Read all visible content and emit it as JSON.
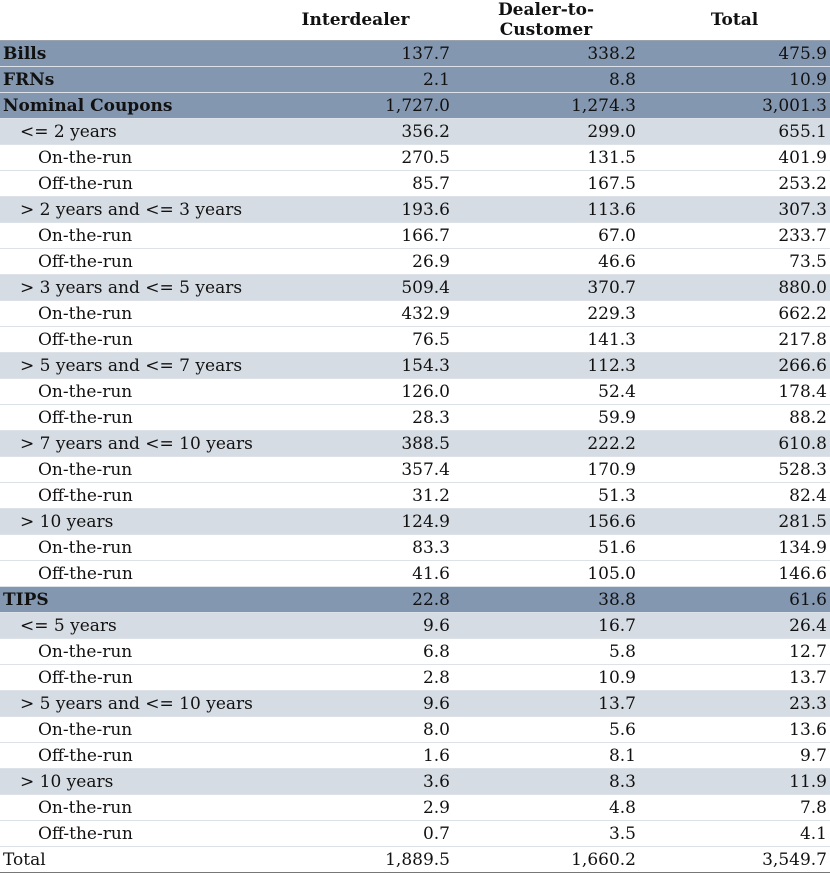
{
  "columns": [
    "",
    "Interdealer",
    "Dealer-to-Customer",
    "Total"
  ],
  "rows": [
    {
      "label": "Bills",
      "level": 0,
      "values": [
        "137.7",
        "338.2",
        "475.9"
      ]
    },
    {
      "label": "FRNs",
      "level": 0,
      "values": [
        "2.1",
        "8.8",
        "10.9"
      ]
    },
    {
      "label": "Nominal Coupons",
      "level": 0,
      "values": [
        "1,727.0",
        "1,274.3",
        "3,001.3"
      ]
    },
    {
      "label": "<= 2 years",
      "level": 1,
      "values": [
        "356.2",
        "299.0",
        "655.1"
      ]
    },
    {
      "label": "On-the-run",
      "level": 2,
      "values": [
        "270.5",
        "131.5",
        "401.9"
      ]
    },
    {
      "label": "Off-the-run",
      "level": 2,
      "values": [
        "85.7",
        "167.5",
        "253.2"
      ]
    },
    {
      "label": "> 2 years and <= 3 years",
      "level": 1,
      "values": [
        "193.6",
        "113.6",
        "307.3"
      ]
    },
    {
      "label": "On-the-run",
      "level": 2,
      "values": [
        "166.7",
        "67.0",
        "233.7"
      ]
    },
    {
      "label": "Off-the-run",
      "level": 2,
      "values": [
        "26.9",
        "46.6",
        "73.5"
      ]
    },
    {
      "label": "> 3 years and <= 5 years",
      "level": 1,
      "values": [
        "509.4",
        "370.7",
        "880.0"
      ]
    },
    {
      "label": "On-the-run",
      "level": 2,
      "values": [
        "432.9",
        "229.3",
        "662.2"
      ]
    },
    {
      "label": "Off-the-run",
      "level": 2,
      "values": [
        "76.5",
        "141.3",
        "217.8"
      ]
    },
    {
      "label": "> 5 years and <= 7 years",
      "level": 1,
      "values": [
        "154.3",
        "112.3",
        "266.6"
      ]
    },
    {
      "label": "On-the-run",
      "level": 2,
      "values": [
        "126.0",
        "52.4",
        "178.4"
      ]
    },
    {
      "label": "Off-the-run",
      "level": 2,
      "values": [
        "28.3",
        "59.9",
        "88.2"
      ]
    },
    {
      "label": "> 7 years and <= 10 years",
      "level": 1,
      "values": [
        "388.5",
        "222.2",
        "610.8"
      ]
    },
    {
      "label": "On-the-run",
      "level": 2,
      "values": [
        "357.4",
        "170.9",
        "528.3"
      ]
    },
    {
      "label": "Off-the-run",
      "level": 2,
      "values": [
        "31.2",
        "51.3",
        "82.4"
      ]
    },
    {
      "label": "> 10 years",
      "level": 1,
      "values": [
        "124.9",
        "156.6",
        "281.5"
      ]
    },
    {
      "label": "On-the-run",
      "level": 2,
      "values": [
        "83.3",
        "51.6",
        "134.9"
      ]
    },
    {
      "label": "Off-the-run",
      "level": 2,
      "values": [
        "41.6",
        "105.0",
        "146.6"
      ]
    },
    {
      "label": "TIPS",
      "level": 0,
      "values": [
        "22.8",
        "38.8",
        "61.6"
      ]
    },
    {
      "label": "<= 5 years",
      "level": 1,
      "values": [
        "9.6",
        "16.7",
        "26.4"
      ]
    },
    {
      "label": "On-the-run",
      "level": 2,
      "values": [
        "6.8",
        "5.8",
        "12.7"
      ]
    },
    {
      "label": "Off-the-run",
      "level": 2,
      "values": [
        "2.8",
        "10.9",
        "13.7"
      ]
    },
    {
      "label": "> 5 years and <= 10 years",
      "level": 1,
      "values": [
        "9.6",
        "13.7",
        "23.3"
      ]
    },
    {
      "label": "On-the-run",
      "level": 2,
      "values": [
        "8.0",
        "5.6",
        "13.6"
      ]
    },
    {
      "label": "Off-the-run",
      "level": 2,
      "values": [
        "1.6",
        "8.1",
        "9.7"
      ]
    },
    {
      "label": "> 10 years",
      "level": 1,
      "values": [
        "3.6",
        "8.3",
        "11.9"
      ]
    },
    {
      "label": "On-the-run",
      "level": 2,
      "values": [
        "2.9",
        "4.8",
        "7.8"
      ]
    },
    {
      "label": "Off-the-run",
      "level": 2,
      "values": [
        "0.7",
        "3.5",
        "4.1"
      ]
    },
    {
      "label": "Total",
      "level": "total",
      "values": [
        "1,889.5",
        "1,660.2",
        "3,549.7"
      ]
    }
  ],
  "colors": {
    "category_row": "#8497b0",
    "subcategory_row": "#d6dce4",
    "detail_row": "#ffffff"
  }
}
